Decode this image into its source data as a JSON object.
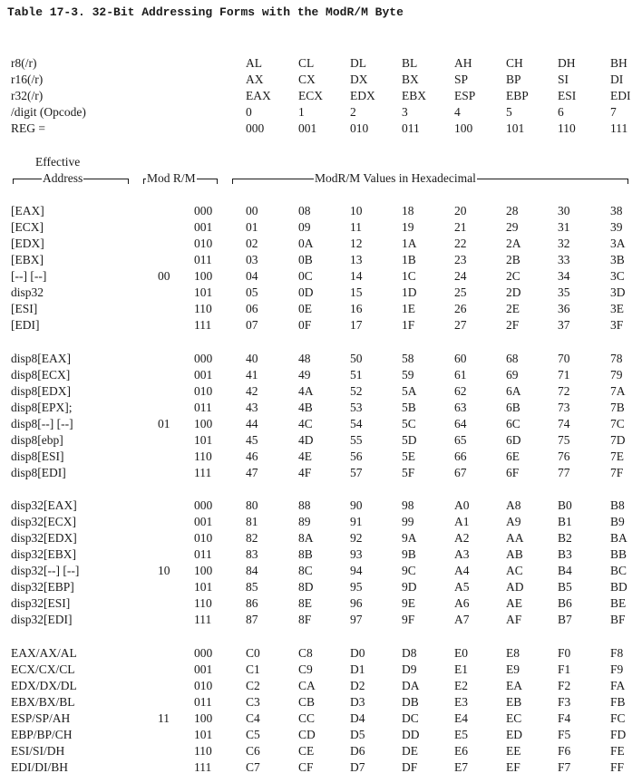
{
  "title": "Table 17-3. 32-Bit Addressing Forms with the ModR/M Byte",
  "header_rows": [
    {
      "label": "r8(/r)",
      "values": [
        "AL",
        "CL",
        "DL",
        "BL",
        "AH",
        "CH",
        "DH",
        "BH"
      ]
    },
    {
      "label": "r16(/r)",
      "values": [
        "AX",
        "CX",
        "DX",
        "BX",
        "SP",
        "BP",
        "SI",
        "DI"
      ]
    },
    {
      "label": "r32(/r)",
      "values": [
        "EAX",
        "ECX",
        "EDX",
        "EBX",
        "ESP",
        "EBP",
        "ESI",
        "EDI"
      ]
    },
    {
      "label": "/digit (Opcode)",
      "values": [
        "0",
        "1",
        "2",
        "3",
        "4",
        "5",
        "6",
        "7"
      ]
    },
    {
      "label": "REG =",
      "values": [
        "000",
        "001",
        "010",
        "011",
        "100",
        "101",
        "110",
        "111"
      ]
    }
  ],
  "column_headers": {
    "effective_line1": "Effective",
    "effective_line2": "Address",
    "mod_rm": "Mod R/M",
    "values": "ModR/M Values in Hexadecimal"
  },
  "groups": [
    {
      "mod": "00",
      "rows": [
        {
          "addr": "[EAX]",
          "rm": "000",
          "vals": [
            "00",
            "08",
            "10",
            "18",
            "20",
            "28",
            "30",
            "38"
          ]
        },
        {
          "addr": "[ECX]",
          "rm": "001",
          "vals": [
            "01",
            "09",
            "11",
            "19",
            "21",
            "29",
            "31",
            "39"
          ]
        },
        {
          "addr": "[EDX]",
          "rm": "010",
          "vals": [
            "02",
            "0A",
            "12",
            "1A",
            "22",
            "2A",
            "32",
            "3A"
          ]
        },
        {
          "addr": "[EBX]",
          "rm": "011",
          "vals": [
            "03",
            "0B",
            "13",
            "1B",
            "23",
            "2B",
            "33",
            "3B"
          ]
        },
        {
          "addr": "[--] [--]",
          "rm": "100",
          "vals": [
            "04",
            "0C",
            "14",
            "1C",
            "24",
            "2C",
            "34",
            "3C"
          ]
        },
        {
          "addr": "disp32",
          "rm": "101",
          "vals": [
            "05",
            "0D",
            "15",
            "1D",
            "25",
            "2D",
            "35",
            "3D"
          ]
        },
        {
          "addr": "[ESI]",
          "rm": "110",
          "vals": [
            "06",
            "0E",
            "16",
            "1E",
            "26",
            "2E",
            "36",
            "3E"
          ]
        },
        {
          "addr": "[EDI]",
          "rm": "111",
          "vals": [
            "07",
            "0F",
            "17",
            "1F",
            "27",
            "2F",
            "37",
            "3F"
          ]
        }
      ]
    },
    {
      "mod": "01",
      "rows": [
        {
          "addr": "disp8[EAX]",
          "rm": "000",
          "vals": [
            "40",
            "48",
            "50",
            "58",
            "60",
            "68",
            "70",
            "78"
          ]
        },
        {
          "addr": "disp8[ECX]",
          "rm": "001",
          "vals": [
            "41",
            "49",
            "51",
            "59",
            "61",
            "69",
            "71",
            "79"
          ]
        },
        {
          "addr": "disp8[EDX]",
          "rm": "010",
          "vals": [
            "42",
            "4A",
            "52",
            "5A",
            "62",
            "6A",
            "72",
            "7A"
          ]
        },
        {
          "addr": "disp8[EPX];",
          "rm": "011",
          "vals": [
            "43",
            "4B",
            "53",
            "5B",
            "63",
            "6B",
            "73",
            "7B"
          ]
        },
        {
          "addr": "disp8[--] [--]",
          "rm": "100",
          "vals": [
            "44",
            "4C",
            "54",
            "5C",
            "64",
            "6C",
            "74",
            "7C"
          ]
        },
        {
          "addr": "disp8[ebp]",
          "rm": "101",
          "vals": [
            "45",
            "4D",
            "55",
            "5D",
            "65",
            "6D",
            "75",
            "7D"
          ]
        },
        {
          "addr": "disp8[ESI]",
          "rm": "110",
          "vals": [
            "46",
            "4E",
            "56",
            "5E",
            "66",
            "6E",
            "76",
            "7E"
          ]
        },
        {
          "addr": "disp8[EDI]",
          "rm": "111",
          "vals": [
            "47",
            "4F",
            "57",
            "5F",
            "67",
            "6F",
            "77",
            "7F"
          ]
        }
      ]
    },
    {
      "mod": "10",
      "rows": [
        {
          "addr": "disp32[EAX]",
          "rm": "000",
          "vals": [
            "80",
            "88",
            "90",
            "98",
            "A0",
            "A8",
            "B0",
            "B8"
          ]
        },
        {
          "addr": "disp32[ECX]",
          "rm": "001",
          "vals": [
            "81",
            "89",
            "91",
            "99",
            "A1",
            "A9",
            "B1",
            "B9"
          ]
        },
        {
          "addr": "disp32[EDX]",
          "rm": "010",
          "vals": [
            "82",
            "8A",
            "92",
            "9A",
            "A2",
            "AA",
            "B2",
            "BA"
          ]
        },
        {
          "addr": "disp32[EBX]",
          "rm": "011",
          "vals": [
            "83",
            "8B",
            "93",
            "9B",
            "A3",
            "AB",
            "B3",
            "BB"
          ]
        },
        {
          "addr": "disp32[--] [--]",
          "rm": "100",
          "vals": [
            "84",
            "8C",
            "94",
            "9C",
            "A4",
            "AC",
            "B4",
            "BC"
          ]
        },
        {
          "addr": "disp32[EBP]",
          "rm": "101",
          "vals": [
            "85",
            "8D",
            "95",
            "9D",
            "A5",
            "AD",
            "B5",
            "BD"
          ]
        },
        {
          "addr": "disp32[ESI]",
          "rm": "110",
          "vals": [
            "86",
            "8E",
            "96",
            "9E",
            "A6",
            "AE",
            "B6",
            "BE"
          ]
        },
        {
          "addr": "disp32[EDI]",
          "rm": "111",
          "vals": [
            "87",
            "8F",
            "97",
            "9F",
            "A7",
            "AF",
            "B7",
            "BF"
          ]
        }
      ]
    },
    {
      "mod": "11",
      "rows": [
        {
          "addr": "EAX/AX/AL",
          "rm": "000",
          "vals": [
            "C0",
            "C8",
            "D0",
            "D8",
            "E0",
            "E8",
            "F0",
            "F8"
          ]
        },
        {
          "addr": "ECX/CX/CL",
          "rm": "001",
          "vals": [
            "C1",
            "C9",
            "D1",
            "D9",
            "E1",
            "E9",
            "F1",
            "F9"
          ]
        },
        {
          "addr": "EDX/DX/DL",
          "rm": "010",
          "vals": [
            "C2",
            "CA",
            "D2",
            "DA",
            "E2",
            "EA",
            "F2",
            "FA"
          ]
        },
        {
          "addr": "EBX/BX/BL",
          "rm": "011",
          "vals": [
            "C3",
            "CB",
            "D3",
            "DB",
            "E3",
            "EB",
            "F3",
            "FB"
          ]
        },
        {
          "addr": "ESP/SP/AH",
          "rm": "100",
          "vals": [
            "C4",
            "CC",
            "D4",
            "DC",
            "E4",
            "EC",
            "F4",
            "FC"
          ]
        },
        {
          "addr": "EBP/BP/CH",
          "rm": "101",
          "vals": [
            "C5",
            "CD",
            "D5",
            "DD",
            "E5",
            "ED",
            "F5",
            "FD"
          ]
        },
        {
          "addr": "ESI/SI/DH",
          "rm": "110",
          "vals": [
            "C6",
            "CE",
            "D6",
            "DE",
            "E6",
            "EE",
            "F6",
            "FE"
          ]
        },
        {
          "addr": "EDI/DI/BH",
          "rm": "111",
          "vals": [
            "C7",
            "CF",
            "D7",
            "DF",
            "E7",
            "EF",
            "F7",
            "FF"
          ]
        }
      ]
    }
  ]
}
